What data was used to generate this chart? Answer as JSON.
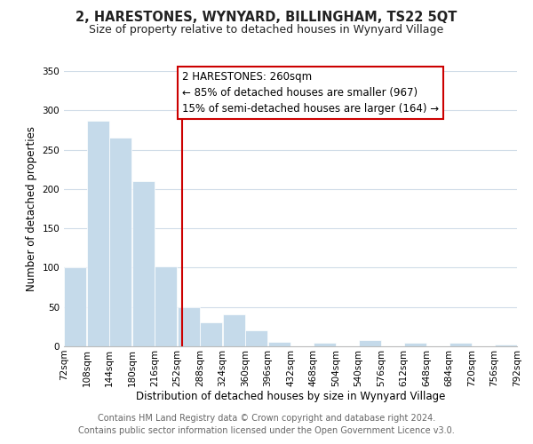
{
  "title": "2, HARESTONES, WYNYARD, BILLINGHAM, TS22 5QT",
  "subtitle": "Size of property relative to detached houses in Wynyard Village",
  "xlabel": "Distribution of detached houses by size in Wynyard Village",
  "ylabel": "Number of detached properties",
  "bar_edges": [
    72,
    108,
    144,
    180,
    216,
    252,
    288,
    324,
    360,
    396,
    432,
    468,
    504,
    540,
    576,
    612,
    648,
    684,
    720,
    756,
    792
  ],
  "bar_heights": [
    100,
    287,
    265,
    210,
    102,
    50,
    30,
    41,
    20,
    6,
    0,
    5,
    0,
    8,
    0,
    5,
    0,
    4,
    0,
    2
  ],
  "bar_color": "#c5daea",
  "bar_edge_color": "#ffffff",
  "reference_line_x": 260,
  "reference_line_color": "#cc0000",
  "annotation_text": "2 HARESTONES: 260sqm\n← 85% of detached houses are smaller (967)\n15% of semi-detached houses are larger (164) →",
  "annotation_box_color": "#ffffff",
  "annotation_box_edge": "#cc0000",
  "ylim": [
    0,
    350
  ],
  "yticks": [
    0,
    50,
    100,
    150,
    200,
    250,
    300,
    350
  ],
  "footer1": "Contains HM Land Registry data © Crown copyright and database right 2024.",
  "footer2": "Contains public sector information licensed under the Open Government Licence v3.0.",
  "background_color": "#ffffff",
  "grid_color": "#d0dce8",
  "title_fontsize": 10.5,
  "subtitle_fontsize": 9,
  "axis_label_fontsize": 8.5,
  "tick_fontsize": 7.5,
  "annotation_fontsize": 8.5,
  "footer_fontsize": 7
}
